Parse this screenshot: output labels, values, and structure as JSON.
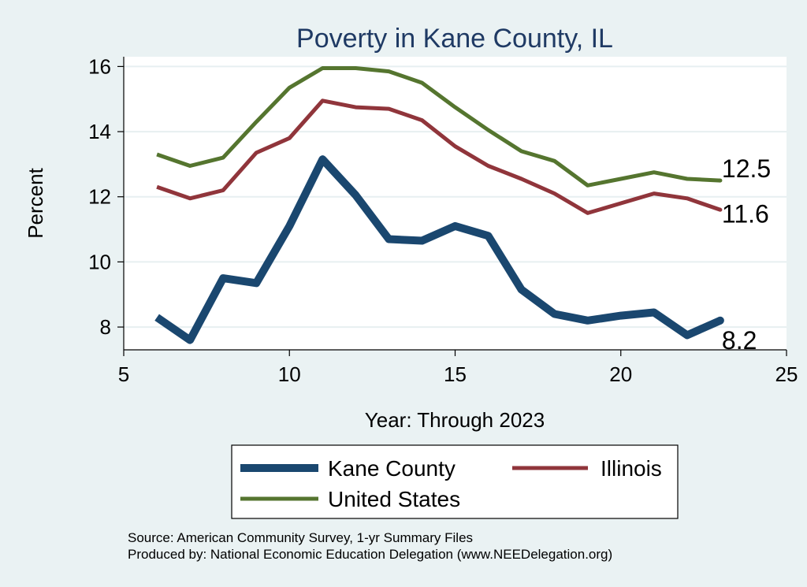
{
  "chart_data": {
    "type": "line",
    "title": "Poverty in Kane County, IL",
    "xlabel": "Year: Through 2023",
    "ylabel": "Percent",
    "xlim": [
      5,
      25
    ],
    "ylim": [
      7.3,
      16.3
    ],
    "xticks": [
      5,
      10,
      15,
      20,
      25
    ],
    "yticks": [
      8,
      10,
      12,
      14,
      16
    ],
    "grid": true,
    "legend_position": "bottom",
    "x": [
      6,
      7,
      8,
      9,
      10,
      11,
      12,
      13,
      14,
      15,
      16,
      17,
      18,
      19,
      20,
      21,
      22,
      23
    ],
    "series": [
      {
        "name": "Kane County",
        "color": "#1a476f",
        "values": [
          8.3,
          7.6,
          9.5,
          9.35,
          11.1,
          13.15,
          12.05,
          10.7,
          10.65,
          11.1,
          10.8,
          9.15,
          8.4,
          8.2,
          8.35,
          8.45,
          7.75,
          8.2
        ],
        "end_label": "8.2"
      },
      {
        "name": "Illinois",
        "color": "#90353b",
        "values": [
          12.3,
          11.95,
          12.2,
          13.35,
          13.8,
          14.95,
          14.75,
          14.7,
          14.35,
          13.55,
          12.95,
          12.55,
          12.1,
          11.5,
          11.8,
          12.1,
          11.95,
          11.6
        ],
        "end_label": "11.6"
      },
      {
        "name": "United States",
        "color": "#55752f",
        "values": [
          13.3,
          12.95,
          13.2,
          14.3,
          15.35,
          15.95,
          15.95,
          15.85,
          15.5,
          14.75,
          14.05,
          13.4,
          13.1,
          12.35,
          12.55,
          12.75,
          12.55,
          12.5
        ],
        "end_label": "12.5"
      }
    ],
    "source_lines": [
      "Source: American Community Survey, 1-yr Summary Files",
      "Produced by: National Economic Education Delegation (www.NEEDelegation.org)"
    ]
  }
}
